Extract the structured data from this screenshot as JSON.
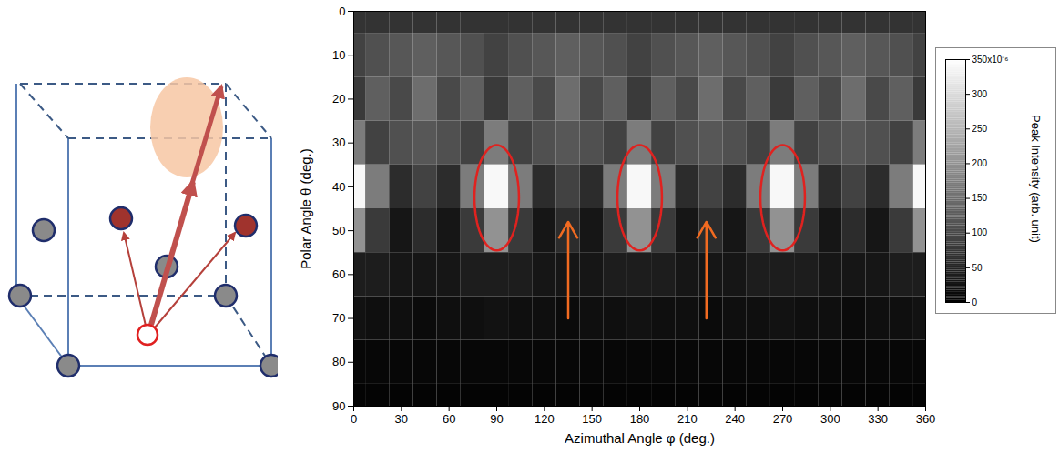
{
  "chart_data": {
    "type": "heatmap",
    "xlabel": "Azimuthal Angle φ (deg.)",
    "ylabel": "Polar Angle θ (deg.)",
    "xlim": [
      0,
      360
    ],
    "xticks": [
      0,
      30,
      60,
      90,
      120,
      150,
      180,
      210,
      240,
      270,
      300,
      330,
      360
    ],
    "ylim": [
      90,
      0
    ],
    "yticks": [
      0,
      10,
      20,
      30,
      40,
      50,
      60,
      70,
      80,
      90
    ],
    "phi_bins": [
      0,
      7.5,
      22.5,
      37.5,
      52.5,
      67.5,
      82.5,
      97.5,
      112.5,
      127.5,
      142.5,
      157.5,
      172.5,
      187.5,
      202.5,
      217.5,
      232.5,
      247.5,
      262.5,
      277.5,
      292.5,
      307.5,
      322.5,
      337.5,
      352.5,
      360
    ],
    "theta_bins": [
      0,
      5,
      15,
      25,
      35,
      45,
      55,
      65,
      75,
      85,
      90
    ],
    "intensity": [
      [
        70,
        70,
        70,
        70,
        70,
        70,
        70,
        70,
        70,
        70,
        70,
        70,
        70,
        70,
        70,
        70,
        70,
        70,
        70,
        70,
        70,
        70,
        70,
        70,
        70
      ],
      [
        90,
        110,
        120,
        130,
        120,
        110,
        90,
        110,
        120,
        130,
        120,
        110,
        90,
        110,
        120,
        130,
        120,
        110,
        90,
        110,
        120,
        130,
        120,
        110,
        90
      ],
      [
        80,
        130,
        100,
        150,
        100,
        130,
        80,
        130,
        100,
        150,
        100,
        130,
        80,
        130,
        100,
        150,
        100,
        130,
        80,
        130,
        100,
        150,
        100,
        130,
        80
      ],
      [
        170,
        90,
        110,
        120,
        110,
        90,
        170,
        90,
        110,
        120,
        110,
        90,
        170,
        90,
        110,
        120,
        110,
        90,
        170,
        90,
        110,
        120,
        110,
        90,
        170
      ],
      [
        340,
        170,
        60,
        90,
        60,
        170,
        340,
        170,
        60,
        90,
        60,
        170,
        340,
        170,
        60,
        90,
        60,
        170,
        340,
        170,
        60,
        90,
        60,
        170,
        340
      ],
      [
        200,
        80,
        30,
        60,
        30,
        80,
        200,
        80,
        30,
        60,
        30,
        80,
        200,
        80,
        30,
        60,
        30,
        80,
        200,
        80,
        30,
        60,
        30,
        80,
        200
      ],
      [
        40,
        40,
        30,
        30,
        30,
        40,
        40,
        40,
        30,
        30,
        30,
        40,
        40,
        40,
        30,
        30,
        30,
        40,
        40,
        40,
        30,
        30,
        30,
        40,
        40
      ],
      [
        25,
        20,
        20,
        15,
        20,
        20,
        25,
        20,
        20,
        15,
        20,
        20,
        25,
        20,
        20,
        15,
        20,
        20,
        25,
        20,
        20,
        15,
        20,
        20,
        25
      ],
      [
        10,
        10,
        10,
        10,
        10,
        10,
        10,
        10,
        10,
        10,
        10,
        10,
        10,
        10,
        10,
        10,
        10,
        10,
        10,
        10,
        10,
        10,
        10,
        10,
        10
      ],
      [
        5,
        5,
        5,
        5,
        5,
        5,
        5,
        5,
        5,
        5,
        5,
        5,
        5,
        5,
        5,
        5,
        5,
        5,
        5,
        5,
        5,
        5,
        5,
        5,
        5
      ]
    ],
    "colorbar": {
      "label": "Peak Intensity (arb. unit)",
      "range": [
        0,
        350
      ],
      "ticks": [
        0,
        50,
        100,
        150,
        200,
        250,
        300,
        {
          "value": 350,
          "label": "350x10⁻⁶"
        }
      ]
    },
    "annotations": {
      "ellipses": [
        {
          "x": 90,
          "y": 42.5,
          "rx": 14,
          "ry": 12
        },
        {
          "x": 180,
          "y": 42.5,
          "rx": 14,
          "ry": 12
        },
        {
          "x": 270,
          "y": 42.5,
          "rx": 14,
          "ry": 12
        }
      ],
      "arrows": [
        {
          "x": 135,
          "y1": 70,
          "y2": 48
        },
        {
          "x": 222,
          "y1": 70,
          "y2": 48
        }
      ]
    }
  }
}
